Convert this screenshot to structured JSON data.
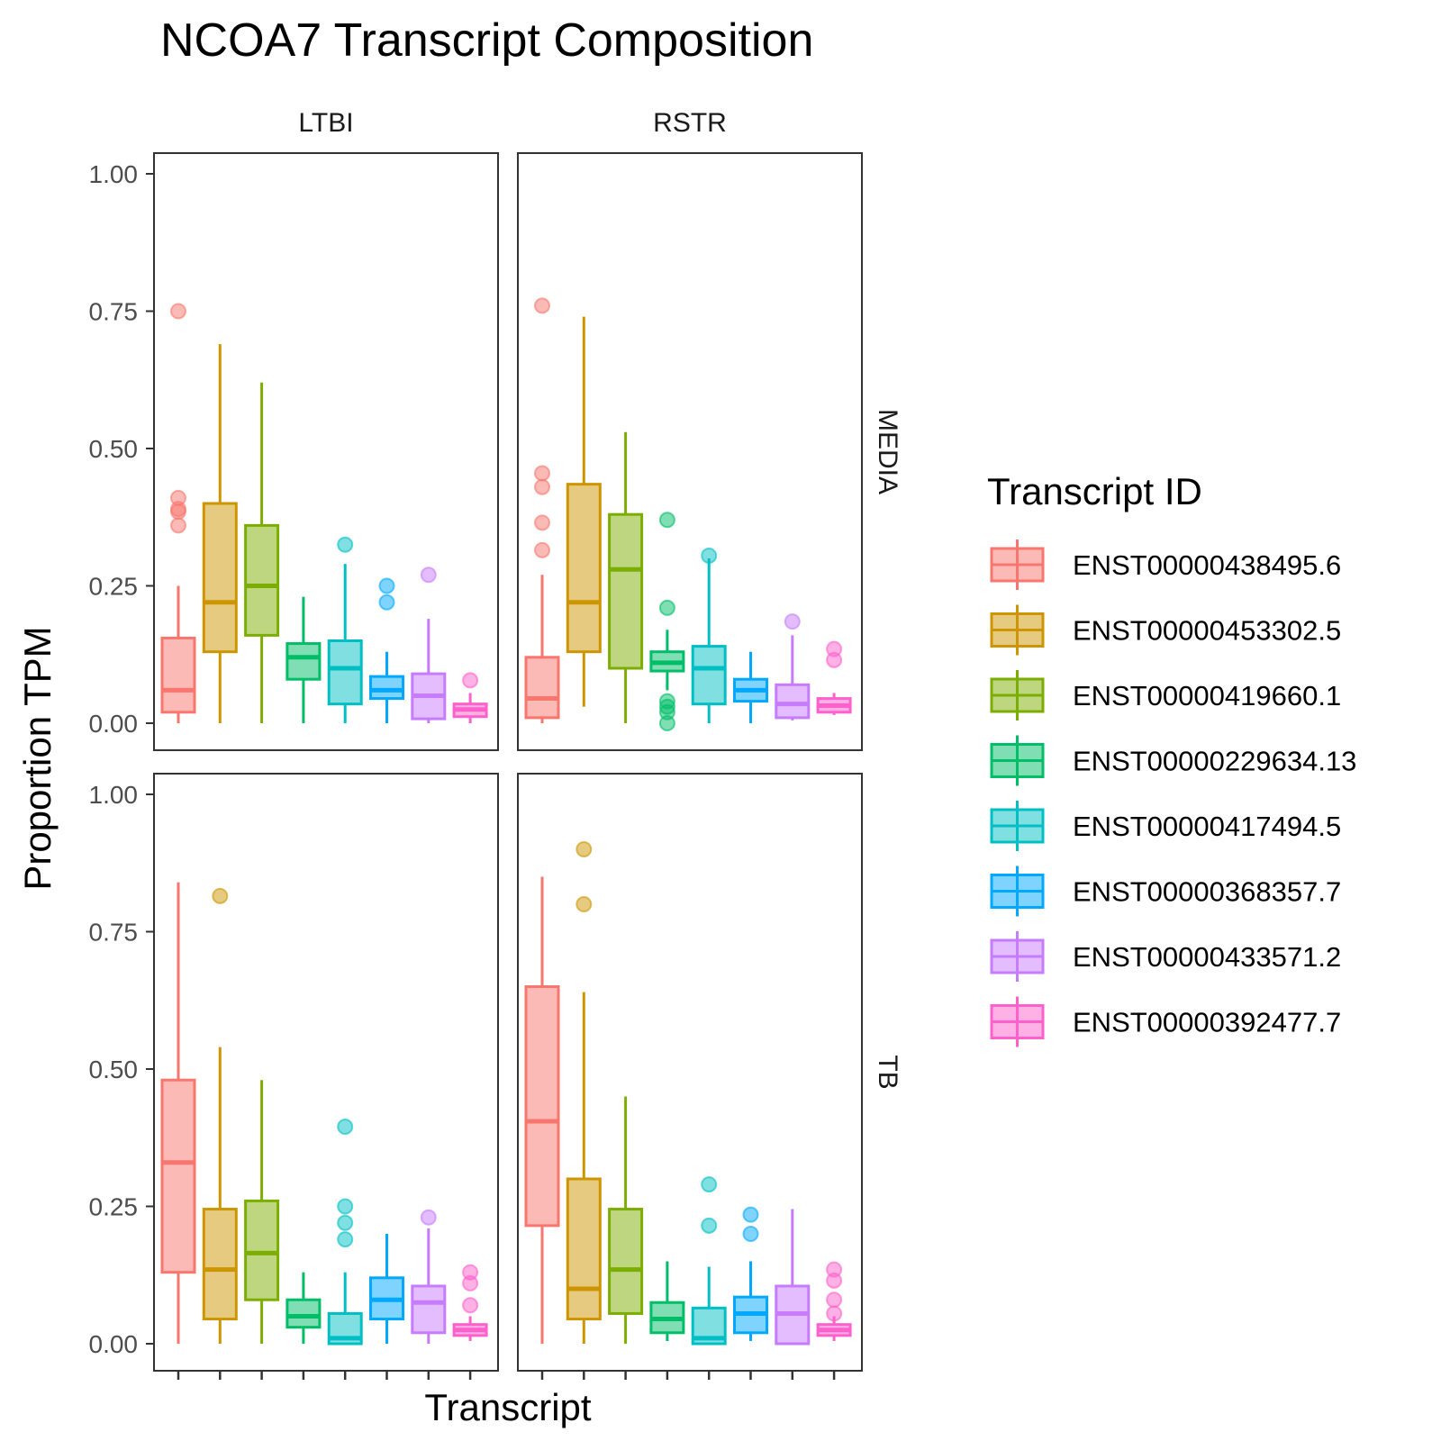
{
  "chart_data": {
    "type": "boxplot",
    "title": "NCOA7 Transcript Composition",
    "xlabel": "Transcript",
    "ylabel": "Proportion TPM",
    "ylim": [
      0,
      1
    ],
    "yticks": [
      "0.00",
      "0.25",
      "0.50",
      "0.75",
      "1.00"
    ],
    "grid": false,
    "legend": {
      "title": "Transcript ID",
      "position": "right",
      "items": [
        {
          "label": "ENST00000438495.6",
          "color": "#F8766D"
        },
        {
          "label": "ENST00000453302.5",
          "color": "#CD9600"
        },
        {
          "label": "ENST00000419660.1",
          "color": "#7CAE00"
        },
        {
          "label": "ENST00000229634.13",
          "color": "#00BE67"
        },
        {
          "label": "ENST00000417494.5",
          "color": "#00BFC4"
        },
        {
          "label": "ENST00000368357.7",
          "color": "#00A9FF"
        },
        {
          "label": "ENST00000433571.2",
          "color": "#C77CFF"
        },
        {
          "label": "ENST00000392477.7",
          "color": "#FF61CC"
        }
      ]
    },
    "col_facets": [
      "LTBI",
      "RSTR"
    ],
    "row_facets": [
      "MEDIA",
      "TB"
    ],
    "panels": [
      {
        "col": "LTBI",
        "row": "MEDIA",
        "boxes": [
          {
            "low": 0.0,
            "q1": 0.02,
            "median": 0.06,
            "q3": 0.155,
            "high": 0.25,
            "outliers": [
              0.36,
              0.385,
              0.39,
              0.41,
              0.75
            ]
          },
          {
            "low": 0.0,
            "q1": 0.13,
            "median": 0.22,
            "q3": 0.4,
            "high": 0.69,
            "outliers": []
          },
          {
            "low": 0.0,
            "q1": 0.16,
            "median": 0.25,
            "q3": 0.36,
            "high": 0.62,
            "outliers": []
          },
          {
            "low": 0.0,
            "q1": 0.08,
            "median": 0.12,
            "q3": 0.145,
            "high": 0.23,
            "outliers": []
          },
          {
            "low": 0.0,
            "q1": 0.035,
            "median": 0.1,
            "q3": 0.15,
            "high": 0.29,
            "outliers": [
              0.325
            ]
          },
          {
            "low": 0.0,
            "q1": 0.045,
            "median": 0.06,
            "q3": 0.085,
            "high": 0.13,
            "outliers": [
              0.22,
              0.25
            ]
          },
          {
            "low": 0.0,
            "q1": 0.008,
            "median": 0.05,
            "q3": 0.09,
            "high": 0.19,
            "outliers": [
              0.27
            ]
          },
          {
            "low": 0.0,
            "q1": 0.012,
            "median": 0.025,
            "q3": 0.035,
            "high": 0.055,
            "outliers": [
              0.078
            ]
          }
        ]
      },
      {
        "col": "RSTR",
        "row": "MEDIA",
        "boxes": [
          {
            "low": 0.0,
            "q1": 0.01,
            "median": 0.045,
            "q3": 0.12,
            "high": 0.27,
            "outliers": [
              0.315,
              0.365,
              0.43,
              0.455,
              0.76
            ]
          },
          {
            "low": 0.03,
            "q1": 0.13,
            "median": 0.22,
            "q3": 0.435,
            "high": 0.74,
            "outliers": []
          },
          {
            "low": 0.0,
            "q1": 0.1,
            "median": 0.28,
            "q3": 0.38,
            "high": 0.53,
            "outliers": []
          },
          {
            "low": 0.06,
            "q1": 0.095,
            "median": 0.11,
            "q3": 0.13,
            "high": 0.17,
            "outliers": [
              0.0,
              0.02,
              0.03,
              0.04,
              0.21,
              0.37
            ]
          },
          {
            "low": 0.0,
            "q1": 0.035,
            "median": 0.1,
            "q3": 0.14,
            "high": 0.3,
            "outliers": [
              0.305
            ]
          },
          {
            "low": 0.0,
            "q1": 0.04,
            "median": 0.06,
            "q3": 0.08,
            "high": 0.13,
            "outliers": []
          },
          {
            "low": 0.005,
            "q1": 0.01,
            "median": 0.035,
            "q3": 0.07,
            "high": 0.16,
            "outliers": [
              0.185
            ]
          },
          {
            "low": 0.015,
            "q1": 0.02,
            "median": 0.032,
            "q3": 0.045,
            "high": 0.055,
            "outliers": [
              0.115,
              0.135
            ]
          }
        ]
      },
      {
        "col": "LTBI",
        "row": "TB",
        "boxes": [
          {
            "low": 0.0,
            "q1": 0.13,
            "median": 0.33,
            "q3": 0.48,
            "high": 0.84,
            "outliers": []
          },
          {
            "low": 0.0,
            "q1": 0.045,
            "median": 0.135,
            "q3": 0.245,
            "high": 0.54,
            "outliers": [
              0.815
            ]
          },
          {
            "low": 0.0,
            "q1": 0.08,
            "median": 0.165,
            "q3": 0.26,
            "high": 0.48,
            "outliers": []
          },
          {
            "low": 0.0,
            "q1": 0.03,
            "median": 0.05,
            "q3": 0.08,
            "high": 0.13,
            "outliers": []
          },
          {
            "low": 0.0,
            "q1": 0.0,
            "median": 0.01,
            "q3": 0.055,
            "high": 0.13,
            "outliers": [
              0.19,
              0.22,
              0.25,
              0.395
            ]
          },
          {
            "low": 0.0,
            "q1": 0.045,
            "median": 0.08,
            "q3": 0.12,
            "high": 0.2,
            "outliers": []
          },
          {
            "low": 0.0,
            "q1": 0.02,
            "median": 0.075,
            "q3": 0.105,
            "high": 0.21,
            "outliers": [
              0.23
            ]
          },
          {
            "low": 0.005,
            "q1": 0.015,
            "median": 0.025,
            "q3": 0.035,
            "high": 0.05,
            "outliers": [
              0.07,
              0.11,
              0.13
            ]
          }
        ]
      },
      {
        "col": "RSTR",
        "row": "TB",
        "boxes": [
          {
            "low": 0.0,
            "q1": 0.215,
            "median": 0.405,
            "q3": 0.65,
            "high": 0.85,
            "outliers": []
          },
          {
            "low": 0.0,
            "q1": 0.045,
            "median": 0.1,
            "q3": 0.3,
            "high": 0.64,
            "outliers": [
              0.8,
              0.9
            ]
          },
          {
            "low": 0.0,
            "q1": 0.055,
            "median": 0.135,
            "q3": 0.245,
            "high": 0.45,
            "outliers": []
          },
          {
            "low": 0.005,
            "q1": 0.02,
            "median": 0.045,
            "q3": 0.075,
            "high": 0.15,
            "outliers": []
          },
          {
            "low": 0.0,
            "q1": 0.0,
            "median": 0.01,
            "q3": 0.065,
            "high": 0.14,
            "outliers": [
              0.215,
              0.29
            ]
          },
          {
            "low": 0.005,
            "q1": 0.02,
            "median": 0.055,
            "q3": 0.085,
            "high": 0.15,
            "outliers": [
              0.2,
              0.235
            ]
          },
          {
            "low": 0.0,
            "q1": 0.0,
            "median": 0.055,
            "q3": 0.105,
            "high": 0.245,
            "outliers": []
          },
          {
            "low": 0.005,
            "q1": 0.015,
            "median": 0.025,
            "q3": 0.035,
            "high": 0.05,
            "outliers": [
              0.055,
              0.08,
              0.115,
              0.135
            ]
          }
        ]
      }
    ]
  }
}
